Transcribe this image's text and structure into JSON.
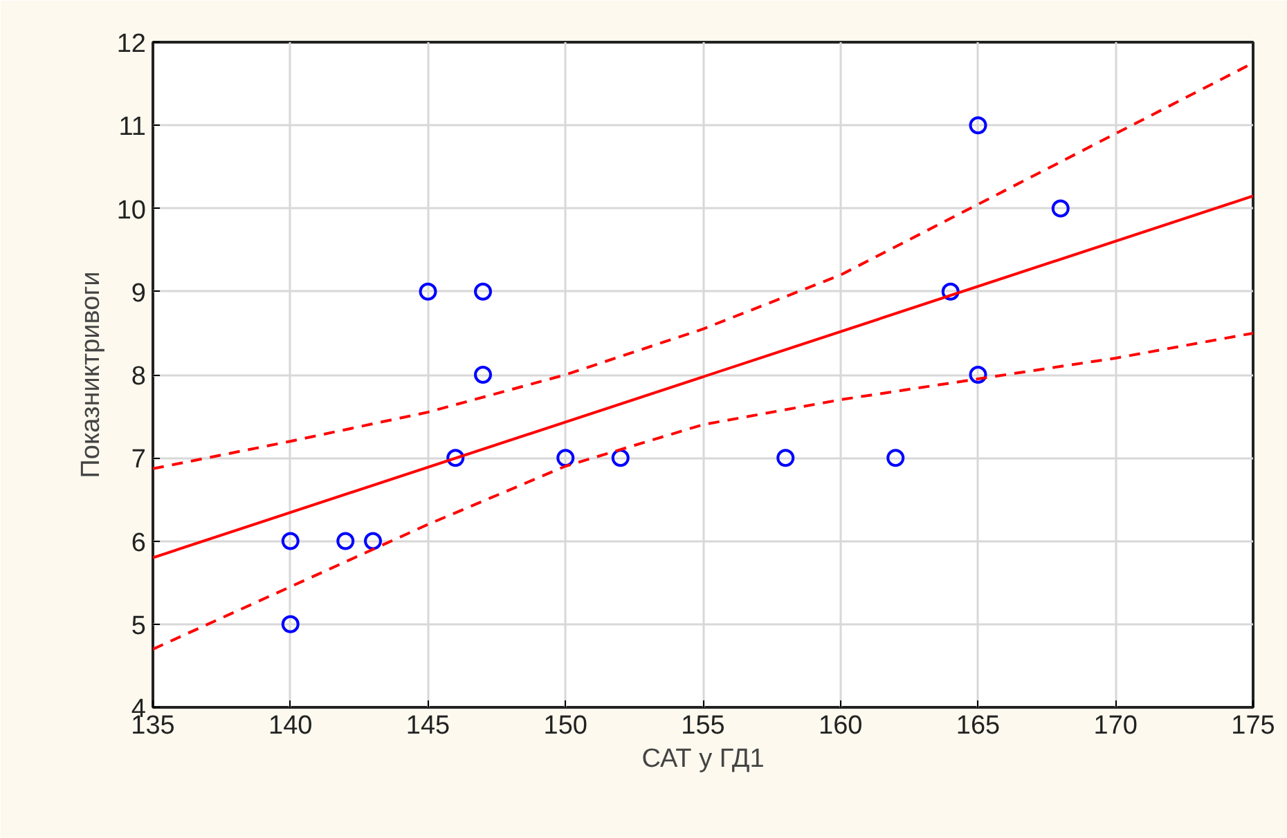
{
  "chart_data": {
    "type": "scatter",
    "xlabel": "САТ у ГД1",
    "ylabel": "Показниктривоги",
    "xlim": [
      135,
      175
    ],
    "ylim": [
      4,
      12
    ],
    "xticks": [
      135,
      140,
      145,
      150,
      155,
      160,
      165,
      170,
      175
    ],
    "yticks": [
      4,
      5,
      6,
      7,
      8,
      9,
      10,
      11,
      12
    ],
    "grid": true,
    "series": [
      {
        "marker": "circle",
        "color": "#0000ff",
        "x": [
          140,
          140,
          142,
          143,
          145,
          146,
          147,
          147,
          150,
          152,
          158,
          162,
          164,
          165,
          165,
          168
        ],
        "values": [
          6,
          5,
          6,
          6,
          9,
          7,
          9,
          8,
          7,
          7,
          7,
          7,
          9,
          11,
          8,
          10
        ]
      },
      {
        "type": "line",
        "marker": "none",
        "line_style": "solid",
        "color": "#ff0000",
        "x": [
          135,
          175
        ],
        "values": [
          5.8,
          10.15
        ]
      },
      {
        "type": "line",
        "marker": "none",
        "line_style": "dashed",
        "color": "#ff0000",
        "x": [
          135,
          140,
          145,
          150,
          155,
          160,
          165,
          170,
          175
        ],
        "values": [
          6.87,
          7.2,
          7.55,
          8.0,
          8.55,
          9.2,
          10.05,
          10.9,
          11.75
        ]
      },
      {
        "type": "line",
        "marker": "none",
        "line_style": "dashed",
        "color": "#ff0000",
        "x": [
          135,
          140,
          145,
          150,
          155,
          160,
          165,
          170,
          175
        ],
        "values": [
          4.7,
          5.45,
          6.2,
          6.9,
          7.4,
          7.7,
          7.95,
          8.2,
          8.5
        ]
      }
    ]
  }
}
